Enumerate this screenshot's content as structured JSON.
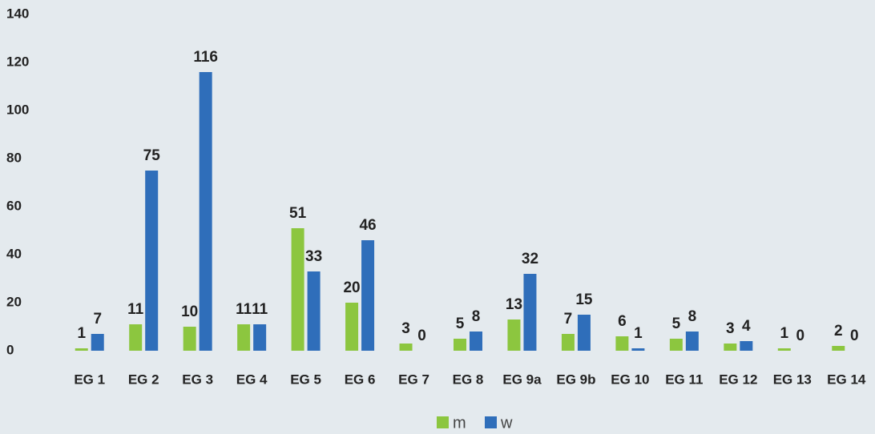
{
  "chart_data": {
    "type": "bar",
    "categories": [
      "EG 1",
      "EG 2",
      "EG 3",
      "EG 4",
      "EG 5",
      "EG 6",
      "EG 7",
      "EG 8",
      "EG 9a",
      "EG 9b",
      "EG 10",
      "EG 11",
      "EG 12",
      "EG 13",
      "EG 14"
    ],
    "series": [
      {
        "name": "m",
        "color": "#8cc63f",
        "values": [
          1,
          11,
          10,
          11,
          51,
          20,
          3,
          5,
          13,
          7,
          6,
          5,
          3,
          1,
          2
        ]
      },
      {
        "name": "w",
        "color": "#2f6eba",
        "values": [
          7,
          75,
          116,
          11,
          33,
          46,
          0,
          8,
          32,
          15,
          1,
          8,
          4,
          0,
          0
        ]
      }
    ],
    "ylim": [
      0,
      140
    ],
    "yticks": [
      0,
      20,
      40,
      60,
      80,
      100,
      120,
      140
    ],
    "grid": false,
    "legend": "bottom"
  }
}
